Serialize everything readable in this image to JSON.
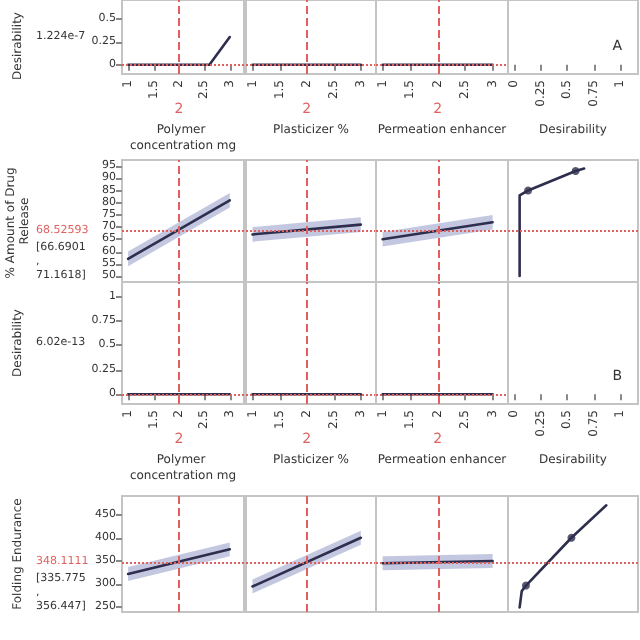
{
  "chart_data": [
    {
      "type": "line",
      "ylabel": "Desirability",
      "xlabel": "Polymer concentration mg",
      "xlim": [
        0.88,
        3.28
      ],
      "xticks": [
        1,
        1.5,
        2,
        2.5,
        3
      ],
      "ylim": [
        -0.1,
        0.7
      ],
      "yticks": [
        0,
        0.25,
        0.5
      ],
      "annotations": [
        "1.224e-7"
      ],
      "series": [
        {
          "color": "#2e2e4e",
          "x": [
            1,
            2.6,
            3
          ],
          "values": [
            0,
            0,
            0.3
          ]
        }
      ],
      "ref_lines": [
        {
          "axis": "x",
          "value": 2,
          "label": "2",
          "color": "#e06060",
          "line_style": "dashed"
        },
        {
          "axis": "y",
          "value": 0,
          "color": "#e06060",
          "line_style": "dotted"
        }
      ]
    },
    {
      "type": "line",
      "xlabel": "Plasticizer %",
      "xlim": [
        0.88,
        3.28
      ],
      "xticks": [
        1,
        1.5,
        2,
        2.5,
        3
      ],
      "ylim": [
        -0.1,
        0.7
      ],
      "tick_labels": "x",
      "series": [
        {
          "color": "#2e2e4e",
          "x": [
            1,
            3
          ],
          "values": [
            0,
            0
          ]
        }
      ],
      "ref_lines": [
        {
          "axis": "x",
          "value": 2,
          "label": "2",
          "color": "#e06060",
          "line_style": "dashed"
        },
        {
          "axis": "y",
          "value": 0,
          "color": "#e06060",
          "line_style": "dotted"
        }
      ]
    },
    {
      "type": "line",
      "xlabel": "Permeation enhancer",
      "xlim": [
        0.88,
        3.28
      ],
      "xticks": [
        1,
        1.5,
        2,
        2.5,
        3
      ],
      "ylim": [
        -0.1,
        0.7
      ],
      "tick_labels": "x",
      "series": [
        {
          "color": "#2e2e4e",
          "x": [
            1,
            3
          ],
          "values": [
            0,
            0
          ]
        }
      ],
      "ref_lines": [
        {
          "axis": "x",
          "value": 2,
          "label": "2",
          "color": "#e06060",
          "line_style": "dashed"
        },
        {
          "axis": "y",
          "value": 0,
          "color": "#e06060",
          "line_style": "dotted"
        }
      ]
    },
    {
      "type": "line",
      "xlabel": "Desirability",
      "xlim": [
        -0.06,
        1.17
      ],
      "xticks": [
        0,
        0.25,
        0.5,
        0.75,
        1
      ],
      "ylim": [
        -0.1,
        0.7
      ],
      "tick_labels": "x",
      "annotations": [
        "A"
      ]
    },
    {
      "type": "line",
      "ylabel": "% Amount of Drug Release",
      "xlim": [
        0.88,
        3.28
      ],
      "ylim": [
        47.5,
        97.5
      ],
      "yticks": [
        50,
        55,
        60,
        65,
        70,
        75,
        80,
        85,
        90,
        95
      ],
      "tick_labels": "y",
      "annotations": [
        "[66.6901, 71.1618]"
      ],
      "series": [
        {
          "color": "#2e2e4e",
          "x": [
            1,
            3
          ],
          "values": [
            57,
            81
          ],
          "lower": [
            54,
            78
          ],
          "upper": [
            60,
            84
          ]
        }
      ],
      "ref_lines": [
        {
          "axis": "x",
          "value": 2,
          "color": "#e06060",
          "line_style": "dashed"
        },
        {
          "axis": "y",
          "value": 68.52593,
          "label": "68.52593",
          "color": "#e06060",
          "line_style": "dotted"
        }
      ]
    },
    {
      "type": "line",
      "xlim": [
        0.88,
        3.28
      ],
      "ylim": [
        47.5,
        97.5
      ],
      "tick_labels": false,
      "series": [
        {
          "color": "#2e2e4e",
          "x": [
            1,
            3
          ],
          "values": [
            67,
            71
          ],
          "lower": [
            64,
            68
          ],
          "upper": [
            70,
            74
          ]
        }
      ],
      "ref_lines": [
        {
          "axis": "x",
          "value": 2,
          "color": "#e06060",
          "line_style": "dashed"
        },
        {
          "axis": "y",
          "value": 68.52593,
          "color": "#e06060",
          "line_style": "dotted"
        }
      ]
    },
    {
      "type": "line",
      "xlim": [
        0.88,
        3.28
      ],
      "ylim": [
        47.5,
        97.5
      ],
      "tick_labels": false,
      "series": [
        {
          "color": "#2e2e4e",
          "x": [
            1,
            3
          ],
          "values": [
            65,
            72
          ],
          "lower": [
            62,
            69
          ],
          "upper": [
            68,
            75
          ]
        }
      ],
      "ref_lines": [
        {
          "axis": "x",
          "value": 2,
          "color": "#e06060",
          "line_style": "dashed"
        },
        {
          "axis": "y",
          "value": 68.52593,
          "color": "#e06060",
          "line_style": "dotted"
        }
      ]
    },
    {
      "type": "line",
      "xlim": [
        -0.06,
        1.17
      ],
      "ylim": [
        47.5,
        97.5
      ],
      "tick_labels": false,
      "series": [
        {
          "color": "#2e2e4e",
          "x": [
            0.05,
            0.05,
            0.13,
            0.58,
            0.66
          ],
          "values": [
            50,
            83,
            85,
            93,
            94
          ]
        },
        {
          "type": "scatter",
          "color": "#2e2e4e",
          "x": [
            0.13,
            0.58
          ],
          "values": [
            85,
            93
          ]
        }
      ],
      "ref_lines": [
        {
          "axis": "y",
          "value": 68.52593,
          "color": "#e06060",
          "line_style": "dotted"
        }
      ]
    },
    {
      "type": "line",
      "ylabel": "Desirability",
      "xlabel": "Polymer concentration mg",
      "xlim": [
        0.88,
        3.28
      ],
      "xticks": [
        1,
        1.5,
        2,
        2.5,
        3
      ],
      "ylim": [
        -0.1,
        1.15
      ],
      "yticks": [
        0,
        0.25,
        0.5,
        0.75,
        1
      ],
      "annotations": [
        "6.02e-13"
      ],
      "series": [
        {
          "color": "#2e2e4e",
          "x": [
            1,
            3
          ],
          "values": [
            0,
            0
          ]
        }
      ],
      "ref_lines": [
        {
          "axis": "x",
          "value": 2,
          "label": "2",
          "color": "#e06060",
          "line_style": "dashed"
        },
        {
          "axis": "y",
          "value": 0,
          "color": "#e06060",
          "line_style": "dotted"
        }
      ]
    },
    {
      "type": "line",
      "xlabel": "Plasticizer %",
      "xlim": [
        0.88,
        3.28
      ],
      "xticks": [
        1,
        1.5,
        2,
        2.5,
        3
      ],
      "ylim": [
        -0.1,
        1.15
      ],
      "tick_labels": "x",
      "series": [
        {
          "color": "#2e2e4e",
          "x": [
            1,
            3
          ],
          "values": [
            0,
            0
          ]
        }
      ],
      "ref_lines": [
        {
          "axis": "x",
          "value": 2,
          "label": "2",
          "color": "#e06060",
          "line_style": "dashed"
        },
        {
          "axis": "y",
          "value": 0,
          "color": "#e06060",
          "line_style": "dotted"
        }
      ]
    },
    {
      "type": "line",
      "xlabel": "Permeation enhancer",
      "xlim": [
        0.88,
        3.28
      ],
      "xticks": [
        1,
        1.5,
        2,
        2.5,
        3
      ],
      "ylim": [
        -0.1,
        1.15
      ],
      "tick_labels": "x",
      "series": [
        {
          "color": "#2e2e4e",
          "x": [
            1,
            3
          ],
          "values": [
            0,
            0
          ]
        }
      ],
      "ref_lines": [
        {
          "axis": "x",
          "value": 2,
          "label": "2",
          "color": "#e06060",
          "line_style": "dashed"
        },
        {
          "axis": "y",
          "value": 0,
          "color": "#e06060",
          "line_style": "dotted"
        }
      ]
    },
    {
      "type": "line",
      "xlabel": "Desirability",
      "xlim": [
        -0.06,
        1.17
      ],
      "xticks": [
        0,
        0.25,
        0.5,
        0.75,
        1
      ],
      "ylim": [
        -0.1,
        1.15
      ],
      "tick_labels": "x",
      "annotations": [
        "B"
      ]
    },
    {
      "type": "line",
      "ylabel": "Folding Endurance",
      "xlim": [
        0.88,
        3.28
      ],
      "ylim": [
        240,
        490
      ],
      "yticks": [
        250,
        300,
        350,
        400,
        450
      ],
      "tick_labels": "y",
      "annotations": [
        "[335.775, 356.447]"
      ],
      "series": [
        {
          "color": "#2e2e4e",
          "x": [
            1,
            3
          ],
          "values": [
            322,
            375
          ],
          "lower": [
            307,
            360
          ],
          "upper": [
            337,
            390
          ]
        }
      ],
      "ref_lines": [
        {
          "axis": "x",
          "value": 2,
          "color": "#e06060",
          "line_style": "dashed"
        },
        {
          "axis": "y",
          "value": 348.1111,
          "label": "348.1111",
          "color": "#e06060",
          "line_style": "dotted"
        }
      ]
    },
    {
      "type": "line",
      "xlim": [
        0.88,
        3.28
      ],
      "ylim": [
        240,
        490
      ],
      "tick_labels": false,
      "series": [
        {
          "color": "#2e2e4e",
          "x": [
            1,
            3
          ],
          "values": [
            295,
            400
          ],
          "lower": [
            280,
            385
          ],
          "upper": [
            310,
            415
          ]
        }
      ],
      "ref_lines": [
        {
          "axis": "x",
          "value": 2,
          "color": "#e06060",
          "line_style": "dashed"
        },
        {
          "axis": "y",
          "value": 348.1111,
          "color": "#e06060",
          "line_style": "dotted"
        }
      ]
    },
    {
      "type": "line",
      "xlim": [
        0.88,
        3.28
      ],
      "ylim": [
        240,
        490
      ],
      "tick_labels": false,
      "series": [
        {
          "color": "#2e2e4e",
          "x": [
            1,
            3
          ],
          "values": [
            345,
            350
          ],
          "lower": [
            330,
            335
          ],
          "upper": [
            360,
            365
          ]
        }
      ],
      "ref_lines": [
        {
          "axis": "x",
          "value": 2,
          "color": "#e06060",
          "line_style": "dashed"
        },
        {
          "axis": "y",
          "value": 348.1111,
          "color": "#e06060",
          "line_style": "dotted"
        }
      ]
    },
    {
      "type": "line",
      "xlim": [
        -0.06,
        1.17
      ],
      "ylim": [
        240,
        490
      ],
      "tick_labels": false,
      "series": [
        {
          "color": "#2e2e4e",
          "x": [
            0.05,
            0.07,
            0.11,
            0.54,
            0.87
          ],
          "values": [
            250,
            285,
            297,
            400,
            470
          ]
        },
        {
          "type": "scatter",
          "color": "#2e2e4e",
          "x": [
            0.11,
            0.54
          ],
          "values": [
            297,
            400
          ]
        }
      ],
      "ref_lines": [
        {
          "axis": "y",
          "value": 348.1111,
          "color": "#e06060",
          "line_style": "dotted"
        }
      ]
    }
  ]
}
